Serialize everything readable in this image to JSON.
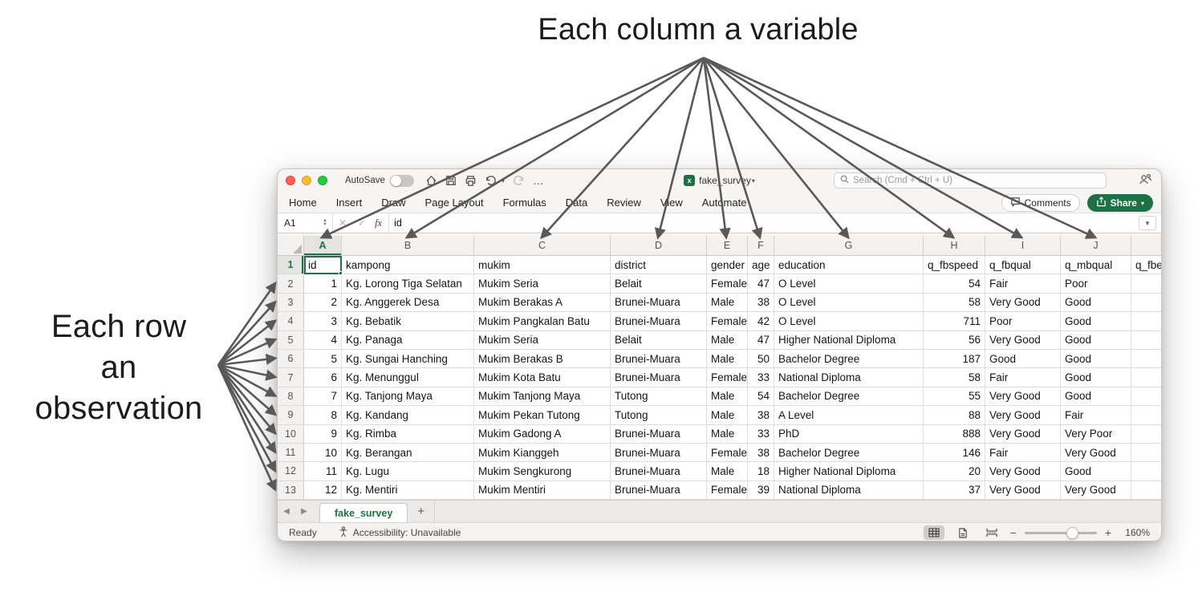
{
  "annotations": {
    "top": "Each column a variable",
    "left_lines": [
      "Each row",
      "an",
      "observation"
    ]
  },
  "window": {
    "titlebar": {
      "autosave_label": "AutoSave",
      "doc_title": "fake_survey",
      "search_placeholder": "Search (Cmd + Ctrl + U)",
      "more_label": "…"
    },
    "menu_tabs": [
      "Home",
      "Insert",
      "Draw",
      "Page Layout",
      "Formulas",
      "Data",
      "Review",
      "View",
      "Automate"
    ],
    "actions": {
      "comments": "Comments",
      "share": "Share"
    },
    "formula_bar": {
      "cell_ref": "A1",
      "fx": "fx",
      "value": "id"
    },
    "footer": {
      "sheet_tab": "fake_survey",
      "add_sheet": "+",
      "status": "Ready",
      "accessibility": "Accessibility: Unavailable",
      "zoom": "160%"
    }
  },
  "sheet": {
    "selected_cell": "A1",
    "col_letters": [
      "A",
      "B",
      "C",
      "D",
      "E",
      "F",
      "G",
      "H",
      "I",
      "J",
      ""
    ],
    "rows": [
      [
        "id",
        "kampong",
        "mukim",
        "district",
        "gender",
        "age",
        "education",
        "q_fbspeed",
        "q_fbqual",
        "q_mbqual",
        "q_fbe"
      ],
      [
        "1",
        "Kg. Lorong Tiga Selatan",
        "Mukim Seria",
        "Belait",
        "Female",
        "47",
        "O Level",
        "54",
        "Fair",
        "Poor",
        ""
      ],
      [
        "2",
        "Kg. Anggerek Desa",
        "Mukim Berakas A",
        "Brunei-Muara",
        "Male",
        "38",
        "O Level",
        "58",
        "Very Good",
        "Good",
        ""
      ],
      [
        "3",
        "Kg. Bebatik",
        "Mukim Pangkalan Batu",
        "Brunei-Muara",
        "Female",
        "42",
        "O Level",
        "711",
        "Poor",
        "Good",
        ""
      ],
      [
        "4",
        "Kg. Panaga",
        "Mukim Seria",
        "Belait",
        "Male",
        "47",
        "Higher National Diploma",
        "56",
        "Very Good",
        "Good",
        ""
      ],
      [
        "5",
        "Kg. Sungai Hanching",
        "Mukim Berakas B",
        "Brunei-Muara",
        "Male",
        "50",
        "Bachelor Degree",
        "187",
        "Good",
        "Good",
        ""
      ],
      [
        "6",
        "Kg. Menunggul",
        "Mukim Kota Batu",
        "Brunei-Muara",
        "Female",
        "33",
        "National Diploma",
        "58",
        "Fair",
        "Good",
        ""
      ],
      [
        "7",
        "Kg. Tanjong Maya",
        "Mukim Tanjong Maya",
        "Tutong",
        "Male",
        "54",
        "Bachelor Degree",
        "55",
        "Very Good",
        "Good",
        ""
      ],
      [
        "8",
        "Kg. Kandang",
        "Mukim Pekan Tutong",
        "Tutong",
        "Male",
        "38",
        "A Level",
        "88",
        "Very Good",
        "Fair",
        ""
      ],
      [
        "9",
        "Kg. Rimba",
        "Mukim Gadong A",
        "Brunei-Muara",
        "Male",
        "33",
        "PhD",
        "888",
        "Very Good",
        "Very Poor",
        ""
      ],
      [
        "10",
        "Kg. Berangan",
        "Mukim Kianggeh",
        "Brunei-Muara",
        "Female",
        "38",
        "Bachelor Degree",
        "146",
        "Fair",
        "Very Good",
        ""
      ],
      [
        "11",
        "Kg. Lugu",
        "Mukim Sengkurong",
        "Brunei-Muara",
        "Male",
        "18",
        "Higher National Diploma",
        "20",
        "Very Good",
        "Good",
        ""
      ],
      [
        "12",
        "Kg. Mentiri",
        "Mukim Mentiri",
        "Brunei-Muara",
        "Female",
        "39",
        "National Diploma",
        "37",
        "Very Good",
        "Very Good",
        ""
      ]
    ]
  },
  "colors": {
    "excel_green": "#1e7145",
    "arrow": "#595959"
  }
}
